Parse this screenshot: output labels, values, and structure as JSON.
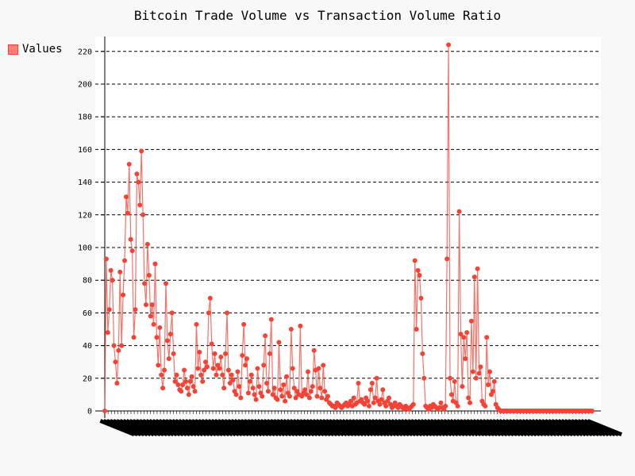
{
  "chart_data": {
    "type": "line",
    "title": "Bitcoin Trade Volume vs Transaction Volume Ratio",
    "legend": {
      "label": "Values",
      "position": "top-left"
    },
    "ylabel": "",
    "xlabel": "",
    "ylim": [
      0,
      230
    ],
    "yticks": [
      0,
      20,
      40,
      60,
      80,
      100,
      120,
      140,
      160,
      180,
      200,
      220
    ],
    "grid": "horizontal-dashed",
    "x_tick_labels": "dense, unreadable (overlapping rotated dates)",
    "color": "#f44336",
    "series": [
      {
        "name": "Values",
        "values": [
          0,
          93,
          48,
          62,
          86,
          80,
          40,
          30,
          17,
          37,
          85,
          40,
          71,
          92,
          131,
          121,
          151,
          105,
          98,
          45,
          62,
          145,
          140,
          126,
          159,
          120,
          78,
          65,
          102,
          83,
          58,
          65,
          53,
          90,
          45,
          28,
          51,
          22,
          14,
          25,
          78,
          43,
          32,
          47,
          60,
          35,
          18,
          22,
          16,
          13,
          12,
          16,
          25,
          18,
          14,
          10,
          18,
          21,
          15,
          12,
          53,
          26,
          36,
          22,
          18,
          25,
          30,
          27,
          60,
          69,
          41,
          26,
          35,
          22,
          28,
          26,
          33,
          22,
          14,
          35,
          60,
          25,
          17,
          22,
          19,
          12,
          10,
          24,
          15,
          8,
          34,
          53,
          28,
          32,
          11,
          18,
          22,
          14,
          10,
          7,
          26,
          15,
          11,
          9,
          28,
          46,
          17,
          12,
          35,
          56,
          10,
          14,
          8,
          7,
          42,
          13,
          9,
          16,
          6,
          21,
          11,
          9,
          50,
          26,
          14,
          8,
          12,
          10,
          52,
          9,
          11,
          13,
          10,
          24,
          8,
          12,
          15,
          37,
          25,
          9,
          26,
          14,
          8,
          28,
          12,
          7,
          9,
          5,
          4,
          3,
          3,
          2,
          5,
          4,
          3,
          2,
          3,
          4,
          5,
          3,
          4,
          6,
          3,
          8,
          4,
          5,
          17,
          6,
          7,
          5,
          4,
          8,
          6,
          3,
          13,
          17,
          5,
          8,
          20,
          6,
          4,
          7,
          13,
          5,
          3,
          6,
          8,
          4,
          2,
          3,
          5,
          3,
          2,
          4,
          3,
          2,
          1,
          3,
          2,
          1,
          2,
          3,
          4,
          92,
          50,
          86,
          83,
          69,
          35,
          20,
          3,
          2,
          1,
          3,
          2,
          4,
          3,
          2,
          1,
          2,
          5,
          2,
          1,
          3,
          93,
          224,
          20,
          10,
          6,
          18,
          5,
          3,
          122,
          47,
          15,
          45,
          32,
          48,
          8,
          5,
          55,
          24,
          82,
          20,
          87,
          23,
          27,
          6,
          4,
          3,
          45,
          16,
          24,
          10,
          12,
          18,
          4,
          2,
          1,
          0,
          0,
          0,
          0,
          0,
          0,
          0,
          0,
          0,
          0,
          0,
          0,
          0,
          0,
          0,
          0,
          0,
          0,
          0,
          0,
          0,
          0,
          0,
          0,
          0,
          0,
          0,
          0,
          0,
          0,
          0,
          0,
          0,
          0,
          0,
          0,
          0,
          0,
          0,
          0,
          0,
          0,
          0,
          0,
          0,
          0,
          0,
          0,
          0,
          0,
          0,
          0,
          0,
          0,
          0,
          0,
          0,
          0,
          0,
          0,
          0
        ]
      }
    ]
  }
}
